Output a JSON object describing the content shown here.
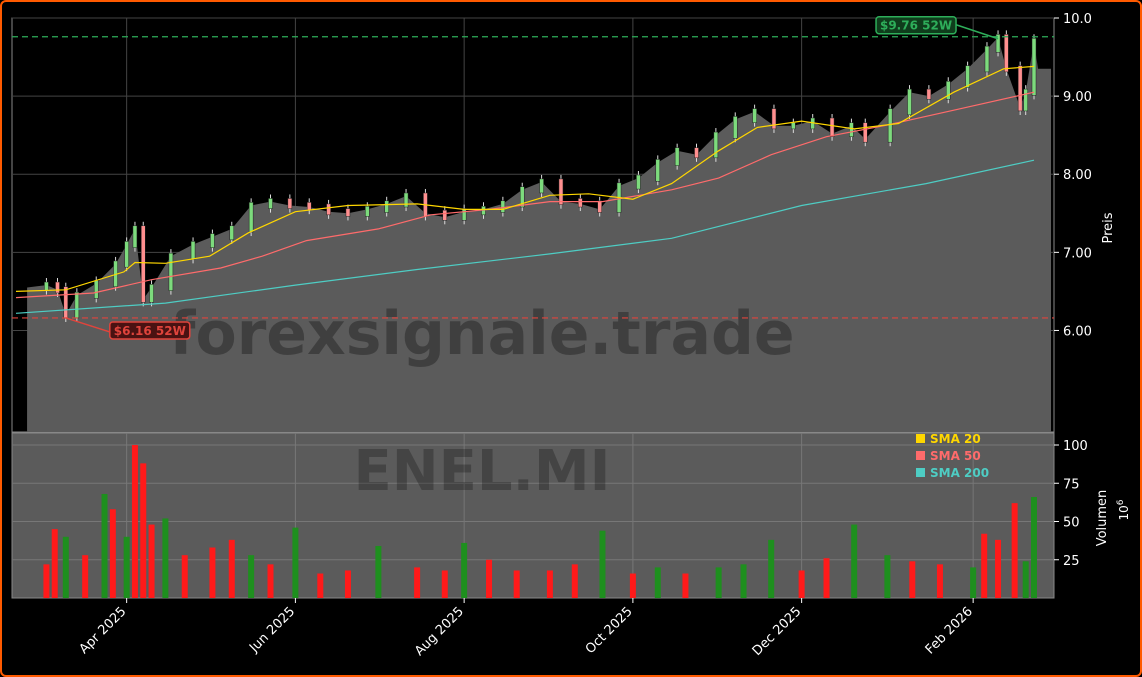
{
  "watermark": "forexsignale.trade",
  "symbol": "ENEL.MI",
  "colors": {
    "frame": "#ff5a00",
    "panel": "#5b5b5b",
    "up": "#1e8f1e",
    "down": "#ff1a1a",
    "sma20": "#ffd700",
    "sma50": "#ff6b6b",
    "sma200": "#4ecdc4",
    "high_line": "#2eae5a",
    "low_line": "#e0443c"
  },
  "chart_data": [
    {
      "type": "candlestick",
      "title": "",
      "ylabel": "Preis",
      "ylim": [
        4.7,
        10.0
      ],
      "yticks": [
        "6.00",
        "7.00",
        "8.00",
        "9.00",
        "10.0"
      ],
      "yticks_values": [
        6.0,
        7.0,
        8.0,
        9.0,
        10.0
      ],
      "x_range": [
        "2025-02-20",
        "2026-02-23"
      ],
      "xticks": [
        "Apr 2025",
        "Jun 2025",
        "Aug 2025",
        "Oct 2025",
        "Dec 2025",
        "Feb 2026"
      ],
      "xticks_dates": [
        "2025-04-01",
        "2025-06-01",
        "2025-08-01",
        "2025-10-01",
        "2025-12-01",
        "2026-02-01"
      ],
      "close_series": [
        [
          "2025-02-24",
          6.55
        ],
        [
          "2025-03-03",
          6.58
        ],
        [
          "2025-03-07",
          6.52
        ],
        [
          "2025-03-10",
          6.2
        ],
        [
          "2025-03-14",
          6.45
        ],
        [
          "2025-03-21",
          6.6
        ],
        [
          "2025-03-28",
          6.85
        ],
        [
          "2025-04-01",
          7.1
        ],
        [
          "2025-04-04",
          7.3
        ],
        [
          "2025-04-07",
          6.4
        ],
        [
          "2025-04-10",
          6.55
        ],
        [
          "2025-04-17",
          6.95
        ],
        [
          "2025-04-25",
          7.1
        ],
        [
          "2025-05-02",
          7.2
        ],
        [
          "2025-05-09",
          7.3
        ],
        [
          "2025-05-16",
          7.6
        ],
        [
          "2025-05-23",
          7.65
        ],
        [
          "2025-05-30",
          7.6
        ],
        [
          "2025-06-06",
          7.58
        ],
        [
          "2025-06-13",
          7.52
        ],
        [
          "2025-06-20",
          7.5
        ],
        [
          "2025-06-27",
          7.55
        ],
        [
          "2025-07-04",
          7.62
        ],
        [
          "2025-07-11",
          7.72
        ],
        [
          "2025-07-18",
          7.5
        ],
        [
          "2025-07-25",
          7.45
        ],
        [
          "2025-08-01",
          7.52
        ],
        [
          "2025-08-08",
          7.55
        ],
        [
          "2025-08-15",
          7.62
        ],
        [
          "2025-08-22",
          7.8
        ],
        [
          "2025-08-29",
          7.9
        ],
        [
          "2025-09-05",
          7.65
        ],
        [
          "2025-09-12",
          7.62
        ],
        [
          "2025-09-19",
          7.55
        ],
        [
          "2025-09-26",
          7.85
        ],
        [
          "2025-10-03",
          7.95
        ],
        [
          "2025-10-10",
          8.15
        ],
        [
          "2025-10-17",
          8.3
        ],
        [
          "2025-10-24",
          8.25
        ],
        [
          "2025-10-31",
          8.5
        ],
        [
          "2025-11-07",
          8.7
        ],
        [
          "2025-11-14",
          8.8
        ],
        [
          "2025-11-21",
          8.62
        ],
        [
          "2025-11-28",
          8.62
        ],
        [
          "2025-12-05",
          8.68
        ],
        [
          "2025-12-12",
          8.52
        ],
        [
          "2025-12-19",
          8.62
        ],
        [
          "2025-12-24",
          8.45
        ],
        [
          "2026-01-02",
          8.8
        ],
        [
          "2026-01-09",
          9.05
        ],
        [
          "2026-01-16",
          9.0
        ],
        [
          "2026-01-23",
          9.15
        ],
        [
          "2026-01-30",
          9.35
        ],
        [
          "2026-02-06",
          9.6
        ],
        [
          "2026-02-10",
          9.75
        ],
        [
          "2026-02-13",
          9.35
        ],
        [
          "2026-02-18",
          8.85
        ],
        [
          "2026-02-20",
          9.05
        ],
        [
          "2026-02-23",
          9.7
        ]
      ],
      "sma20": [
        [
          "2025-02-20",
          6.5
        ],
        [
          "2025-03-10",
          6.52
        ],
        [
          "2025-03-31",
          6.75
        ],
        [
          "2025-04-04",
          6.87
        ],
        [
          "2025-04-15",
          6.86
        ],
        [
          "2025-05-01",
          6.95
        ],
        [
          "2025-05-15",
          7.25
        ],
        [
          "2025-06-01",
          7.52
        ],
        [
          "2025-06-20",
          7.6
        ],
        [
          "2025-07-15",
          7.62
        ],
        [
          "2025-08-01",
          7.55
        ],
        [
          "2025-08-15",
          7.55
        ],
        [
          "2025-09-01",
          7.73
        ],
        [
          "2025-09-15",
          7.75
        ],
        [
          "2025-10-01",
          7.68
        ],
        [
          "2025-10-15",
          7.88
        ],
        [
          "2025-11-01",
          8.3
        ],
        [
          "2025-11-15",
          8.6
        ],
        [
          "2025-12-01",
          8.68
        ],
        [
          "2025-12-20",
          8.58
        ],
        [
          "2026-01-05",
          8.65
        ],
        [
          "2026-01-25",
          9.05
        ],
        [
          "2026-02-12",
          9.35
        ],
        [
          "2026-02-23",
          9.38
        ]
      ],
      "sma50": [
        [
          "2025-02-20",
          6.42
        ],
        [
          "2025-03-20",
          6.48
        ],
        [
          "2025-04-10",
          6.65
        ],
        [
          "2025-05-05",
          6.8
        ],
        [
          "2025-05-20",
          6.95
        ],
        [
          "2025-06-05",
          7.15
        ],
        [
          "2025-07-01",
          7.3
        ],
        [
          "2025-07-20",
          7.48
        ],
        [
          "2025-08-10",
          7.55
        ],
        [
          "2025-09-01",
          7.65
        ],
        [
          "2025-09-20",
          7.65
        ],
        [
          "2025-10-15",
          7.8
        ],
        [
          "2025-11-01",
          7.95
        ],
        [
          "2025-11-20",
          8.25
        ],
        [
          "2025-12-10",
          8.48
        ],
        [
          "2026-01-01",
          8.63
        ],
        [
          "2026-01-25",
          8.82
        ],
        [
          "2026-02-23",
          9.05
        ]
      ],
      "sma200": [
        [
          "2025-02-20",
          6.22
        ],
        [
          "2025-04-15",
          6.35
        ],
        [
          "2025-06-01",
          6.58
        ],
        [
          "2025-07-15",
          6.78
        ],
        [
          "2025-09-01",
          6.98
        ],
        [
          "2025-10-15",
          7.18
        ],
        [
          "2025-12-01",
          7.6
        ],
        [
          "2026-01-15",
          7.88
        ],
        [
          "2026-02-23",
          8.18
        ]
      ],
      "annotations": [
        {
          "label": "$9.76 52W",
          "value": 9.76,
          "date": "2026-02-10",
          "kind": "high"
        },
        {
          "label": "$6.16 52W",
          "value": 6.16,
          "date": "2025-03-10",
          "kind": "low"
        }
      ],
      "grid": true
    },
    {
      "type": "bar",
      "ylabel": "Volumen",
      "yunit": "1e6",
      "ylim": [
        0,
        100
      ],
      "yticks": [
        "25",
        "50",
        "75",
        "100"
      ],
      "yticks_values": [
        25,
        50,
        75,
        100
      ],
      "legend": {
        "placement": "top-right",
        "entries": [
          {
            "name": "SMA 20",
            "color": "#ffd700"
          },
          {
            "name": "SMA 50",
            "color": "#ff6b6b"
          },
          {
            "name": "SMA 200",
            "color": "#4ecdc4"
          }
        ]
      },
      "volume_series": [
        [
          "2025-03-03",
          22,
          "down"
        ],
        [
          "2025-03-06",
          45,
          "down"
        ],
        [
          "2025-03-10",
          40,
          "up"
        ],
        [
          "2025-03-17",
          28,
          "down"
        ],
        [
          "2025-03-24",
          68,
          "up"
        ],
        [
          "2025-03-27",
          58,
          "down"
        ],
        [
          "2025-04-01",
          40,
          "up"
        ],
        [
          "2025-04-04",
          100,
          "down"
        ],
        [
          "2025-04-07",
          88,
          "down"
        ],
        [
          "2025-04-10",
          48,
          "down"
        ],
        [
          "2025-04-15",
          52,
          "up"
        ],
        [
          "2025-04-22",
          28,
          "down"
        ],
        [
          "2025-05-02",
          33,
          "down"
        ],
        [
          "2025-05-09",
          38,
          "down"
        ],
        [
          "2025-05-16",
          28,
          "up"
        ],
        [
          "2025-05-23",
          22,
          "down"
        ],
        [
          "2025-06-01",
          46,
          "up"
        ],
        [
          "2025-06-10",
          16,
          "down"
        ],
        [
          "2025-06-20",
          18,
          "down"
        ],
        [
          "2025-07-01",
          34,
          "up"
        ],
        [
          "2025-07-15",
          20,
          "down"
        ],
        [
          "2025-07-25",
          18,
          "down"
        ],
        [
          "2025-08-01",
          36,
          "up"
        ],
        [
          "2025-08-10",
          25,
          "down"
        ],
        [
          "2025-08-20",
          18,
          "down"
        ],
        [
          "2025-09-01",
          18,
          "down"
        ],
        [
          "2025-09-10",
          22,
          "down"
        ],
        [
          "2025-09-20",
          44,
          "up"
        ],
        [
          "2025-10-01",
          16,
          "down"
        ],
        [
          "2025-10-10",
          20,
          "up"
        ],
        [
          "2025-10-20",
          16,
          "down"
        ],
        [
          "2025-11-01",
          20,
          "up"
        ],
        [
          "2025-11-10",
          22,
          "up"
        ],
        [
          "2025-11-20",
          38,
          "up"
        ],
        [
          "2025-12-01",
          18,
          "down"
        ],
        [
          "2025-12-10",
          26,
          "down"
        ],
        [
          "2025-12-20",
          48,
          "up"
        ],
        [
          "2026-01-01",
          28,
          "up"
        ],
        [
          "2026-01-10",
          24,
          "down"
        ],
        [
          "2026-01-20",
          22,
          "down"
        ],
        [
          "2026-02-01",
          20,
          "up"
        ],
        [
          "2026-02-05",
          42,
          "down"
        ],
        [
          "2026-02-10",
          38,
          "down"
        ],
        [
          "2026-02-16",
          62,
          "down"
        ],
        [
          "2026-02-20",
          24,
          "up"
        ],
        [
          "2026-02-23",
          66,
          "up"
        ]
      ]
    }
  ]
}
